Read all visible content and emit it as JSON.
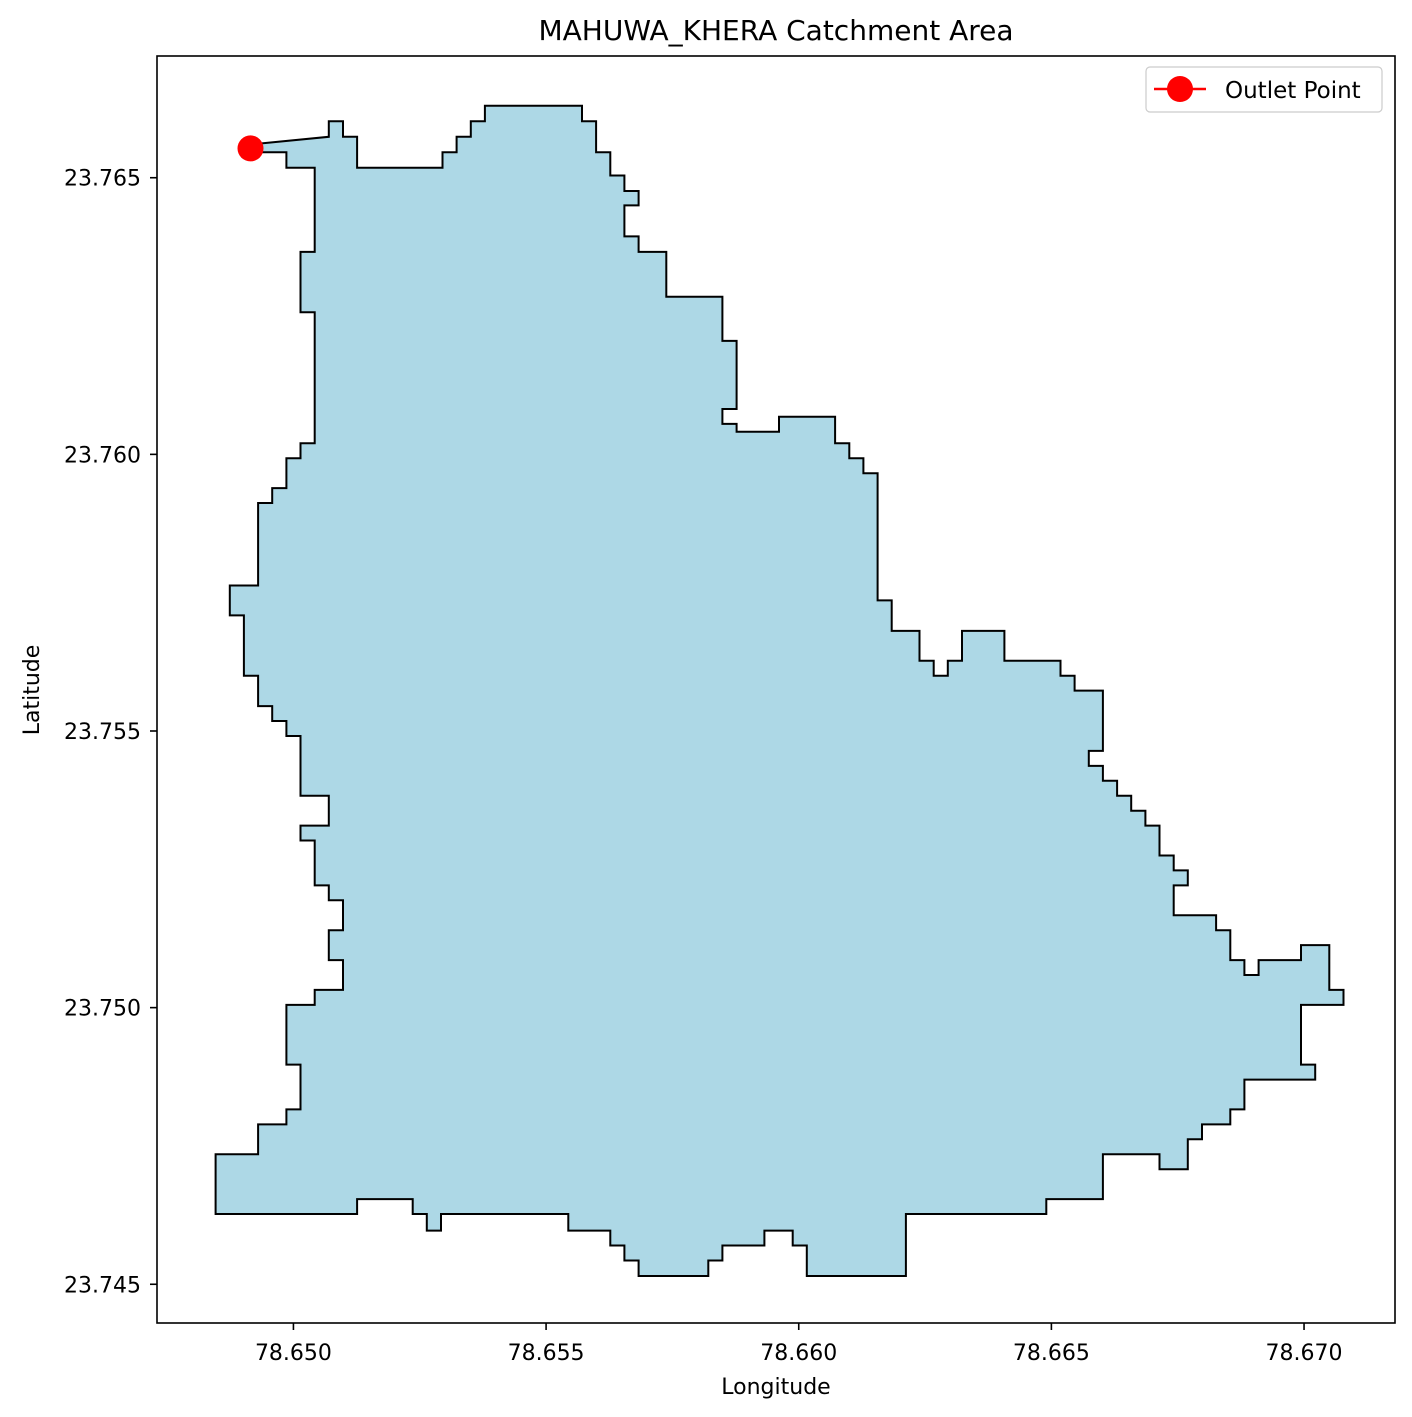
{
  "chart_data": {
    "type": "map",
    "title": "MAHUWA_KHERA Catchment Area",
    "xlabel": "Longitude",
    "ylabel": "Latitude",
    "xlim": [
      78.6473,
      78.6718
    ],
    "ylim": [
      23.7443,
      23.7672
    ],
    "x_ticks": [
      78.65,
      78.655,
      78.66,
      78.665,
      78.67
    ],
    "x_tick_labels": [
      "78.650",
      "78.655",
      "78.660",
      "78.665",
      "78.670"
    ],
    "y_ticks": [
      23.745,
      23.75,
      23.755,
      23.76,
      23.765
    ],
    "y_tick_labels": [
      "23.745",
      "23.750",
      "23.755",
      "23.760",
      "23.765"
    ],
    "grid": false,
    "legend_position": "top-right",
    "legend": [
      {
        "label": "Outlet Point",
        "color": "#ff0000",
        "marker": "circle"
      }
    ],
    "catchment": {
      "fill_color": "#add8e6",
      "edge_color": "#000000",
      "boundary": [
        [
          78.64915,
          23.7656
        ],
        [
          78.6507,
          23.76574
        ],
        [
          78.6507,
          23.76602
        ],
        [
          78.65098,
          23.76602
        ],
        [
          78.65098,
          23.76574
        ],
        [
          78.65126,
          23.76574
        ],
        [
          78.65126,
          23.76518
        ],
        [
          78.65295,
          23.76518
        ],
        [
          78.65295,
          23.76546
        ],
        [
          78.65323,
          23.76546
        ],
        [
          78.65323,
          23.76574
        ],
        [
          78.65351,
          23.76574
        ],
        [
          78.65351,
          23.76602
        ],
        [
          78.65379,
          23.76602
        ],
        [
          78.65379,
          23.7663
        ],
        [
          78.65571,
          23.7663
        ],
        [
          78.65571,
          23.76602
        ],
        [
          78.65599,
          23.76602
        ],
        [
          78.65599,
          23.76546
        ],
        [
          78.65627,
          23.76546
        ],
        [
          78.65627,
          23.76504
        ],
        [
          78.65655,
          23.76504
        ],
        [
          78.65655,
          23.76476
        ],
        [
          78.65683,
          23.76476
        ],
        [
          78.65683,
          23.7645
        ],
        [
          78.65655,
          23.7645
        ],
        [
          78.65655,
          23.76394
        ],
        [
          78.65683,
          23.76394
        ],
        [
          78.65683,
          23.76366
        ],
        [
          78.65738,
          23.76366
        ],
        [
          78.65738,
          23.76285
        ],
        [
          78.65849,
          23.76285
        ],
        [
          78.65849,
          23.76205
        ],
        [
          78.65877,
          23.76205
        ],
        [
          78.65877,
          23.76082
        ],
        [
          78.65849,
          23.76082
        ],
        [
          78.65849,
          23.76055
        ],
        [
          78.65877,
          23.76055
        ],
        [
          78.65877,
          23.76041
        ],
        [
          78.65961,
          23.76041
        ],
        [
          78.65961,
          23.76068
        ],
        [
          78.66072,
          23.76068
        ],
        [
          78.66072,
          23.7602
        ],
        [
          78.661,
          23.7602
        ],
        [
          78.661,
          23.75993
        ],
        [
          78.66128,
          23.75993
        ],
        [
          78.66128,
          23.75966
        ],
        [
          78.66156,
          23.75966
        ],
        [
          78.66156,
          23.75736
        ],
        [
          78.66184,
          23.75736
        ],
        [
          78.66184,
          23.75681
        ],
        [
          78.66239,
          23.75681
        ],
        [
          78.66239,
          23.75627
        ],
        [
          78.66267,
          23.75627
        ],
        [
          78.66267,
          23.756
        ],
        [
          78.66295,
          23.756
        ],
        [
          78.66295,
          23.75627
        ],
        [
          78.66323,
          23.75627
        ],
        [
          78.66323,
          23.75681
        ],
        [
          78.66407,
          23.75681
        ],
        [
          78.66407,
          23.75627
        ],
        [
          78.66518,
          23.75627
        ],
        [
          78.66518,
          23.756
        ],
        [
          78.66546,
          23.756
        ],
        [
          78.66546,
          23.75573
        ],
        [
          78.66602,
          23.75573
        ],
        [
          78.66602,
          23.75464
        ],
        [
          78.66574,
          23.75464
        ],
        [
          78.66574,
          23.75437
        ],
        [
          78.66602,
          23.75437
        ],
        [
          78.66602,
          23.7541
        ],
        [
          78.6663,
          23.7541
        ],
        [
          78.6663,
          23.75383
        ],
        [
          78.66658,
          23.75383
        ],
        [
          78.66658,
          23.75356
        ],
        [
          78.66686,
          23.75356
        ],
        [
          78.66686,
          23.75329
        ],
        [
          78.66714,
          23.75329
        ],
        [
          78.66714,
          23.75275
        ],
        [
          78.66742,
          23.75275
        ],
        [
          78.66742,
          23.75248
        ],
        [
          78.6677,
          23.75248
        ],
        [
          78.6677,
          23.75221
        ],
        [
          78.66742,
          23.75221
        ],
        [
          78.66742,
          23.75167
        ],
        [
          78.66826,
          23.75167
        ],
        [
          78.66826,
          23.7514
        ],
        [
          78.66854,
          23.7514
        ],
        [
          78.66854,
          23.75086
        ],
        [
          78.66882,
          23.75086
        ],
        [
          78.66882,
          23.75059
        ],
        [
          78.6691,
          23.75059
        ],
        [
          78.6691,
          23.75086
        ],
        [
          78.66994,
          23.75086
        ],
        [
          78.66994,
          23.75113
        ],
        [
          78.6705,
          23.75113
        ],
        [
          78.6705,
          23.75032
        ],
        [
          78.67078,
          23.75032
        ],
        [
          78.67078,
          23.75005
        ],
        [
          78.66994,
          23.75005
        ],
        [
          78.66994,
          23.74897
        ],
        [
          78.67022,
          23.74897
        ],
        [
          78.67022,
          23.7487
        ],
        [
          78.66882,
          23.7487
        ],
        [
          78.66882,
          23.74816
        ],
        [
          78.66854,
          23.74816
        ],
        [
          78.66854,
          23.74789
        ],
        [
          78.66798,
          23.74789
        ],
        [
          78.66798,
          23.74762
        ],
        [
          78.6677,
          23.74762
        ],
        [
          78.6677,
          23.74708
        ],
        [
          78.66714,
          23.74708
        ],
        [
          78.66714,
          23.74735
        ],
        [
          78.66602,
          23.74735
        ],
        [
          78.66602,
          23.74654
        ],
        [
          78.6649,
          23.74654
        ],
        [
          78.6649,
          23.74627
        ],
        [
          78.66212,
          23.74627
        ],
        [
          78.66212,
          23.74515
        ],
        [
          78.66016,
          23.74515
        ],
        [
          78.66016,
          23.7457
        ],
        [
          78.65988,
          23.7457
        ],
        [
          78.65988,
          23.74597
        ],
        [
          78.65932,
          23.74597
        ],
        [
          78.65932,
          23.7457
        ],
        [
          78.65849,
          23.7457
        ],
        [
          78.65849,
          23.74543
        ],
        [
          78.65821,
          23.74543
        ],
        [
          78.65821,
          23.74515
        ],
        [
          78.65683,
          23.74515
        ],
        [
          78.65683,
          23.74543
        ],
        [
          78.65655,
          23.74543
        ],
        [
          78.65655,
          23.7457
        ],
        [
          78.65627,
          23.7457
        ],
        [
          78.65627,
          23.74597
        ],
        [
          78.65544,
          23.74597
        ],
        [
          78.65544,
          23.74627
        ],
        [
          78.65292,
          23.74627
        ],
        [
          78.65292,
          23.74597
        ],
        [
          78.65264,
          23.74597
        ],
        [
          78.65264,
          23.74627
        ],
        [
          78.65236,
          23.74627
        ],
        [
          78.65236,
          23.74654
        ],
        [
          78.65126,
          23.74654
        ],
        [
          78.65126,
          23.74627
        ],
        [
          78.64846,
          23.74627
        ],
        [
          78.64846,
          23.74735
        ],
        [
          78.6493,
          23.74735
        ],
        [
          78.6493,
          23.74789
        ],
        [
          78.64986,
          23.74789
        ],
        [
          78.64986,
          23.74816
        ],
        [
          78.65014,
          23.74816
        ],
        [
          78.65014,
          23.74897
        ],
        [
          78.64986,
          23.74897
        ],
        [
          78.64986,
          23.75005
        ],
        [
          78.65042,
          23.75005
        ],
        [
          78.65042,
          23.75032
        ],
        [
          78.65098,
          23.75032
        ],
        [
          78.65098,
          23.75086
        ],
        [
          78.6507,
          23.75086
        ],
        [
          78.6507,
          23.7514
        ],
        [
          78.65098,
          23.7514
        ],
        [
          78.65098,
          23.75194
        ],
        [
          78.6507,
          23.75194
        ],
        [
          78.6507,
          23.75221
        ],
        [
          78.65042,
          23.75221
        ],
        [
          78.65042,
          23.75302
        ],
        [
          78.65014,
          23.75302
        ],
        [
          78.65014,
          23.75329
        ],
        [
          78.6507,
          23.75329
        ],
        [
          78.6507,
          23.75383
        ],
        [
          78.65014,
          23.75383
        ],
        [
          78.65014,
          23.75491
        ],
        [
          78.64986,
          23.75491
        ],
        [
          78.64986,
          23.75518
        ],
        [
          78.64958,
          23.75518
        ],
        [
          78.64958,
          23.75545
        ],
        [
          78.6493,
          23.75545
        ],
        [
          78.6493,
          23.756
        ],
        [
          78.64902,
          23.756
        ],
        [
          78.64902,
          23.75709
        ],
        [
          78.64874,
          23.75709
        ],
        [
          78.64874,
          23.75763
        ],
        [
          78.6493,
          23.75763
        ],
        [
          78.6493,
          23.75912
        ],
        [
          78.64958,
          23.75912
        ],
        [
          78.64958,
          23.75939
        ],
        [
          78.64986,
          23.75939
        ],
        [
          78.64986,
          23.75993
        ],
        [
          78.65014,
          23.75993
        ],
        [
          78.65014,
          23.7602
        ],
        [
          78.65042,
          23.7602
        ],
        [
          78.65042,
          23.76257
        ],
        [
          78.65014,
          23.76257
        ],
        [
          78.65014,
          23.76366
        ],
        [
          78.65042,
          23.76366
        ],
        [
          78.65042,
          23.76518
        ],
        [
          78.64986,
          23.76518
        ],
        [
          78.64986,
          23.76546
        ],
        [
          78.64915,
          23.76546
        ]
      ]
    },
    "outlet_point": {
      "x": 78.64915,
      "y": 23.76553,
      "color": "#ff0000"
    }
  }
}
